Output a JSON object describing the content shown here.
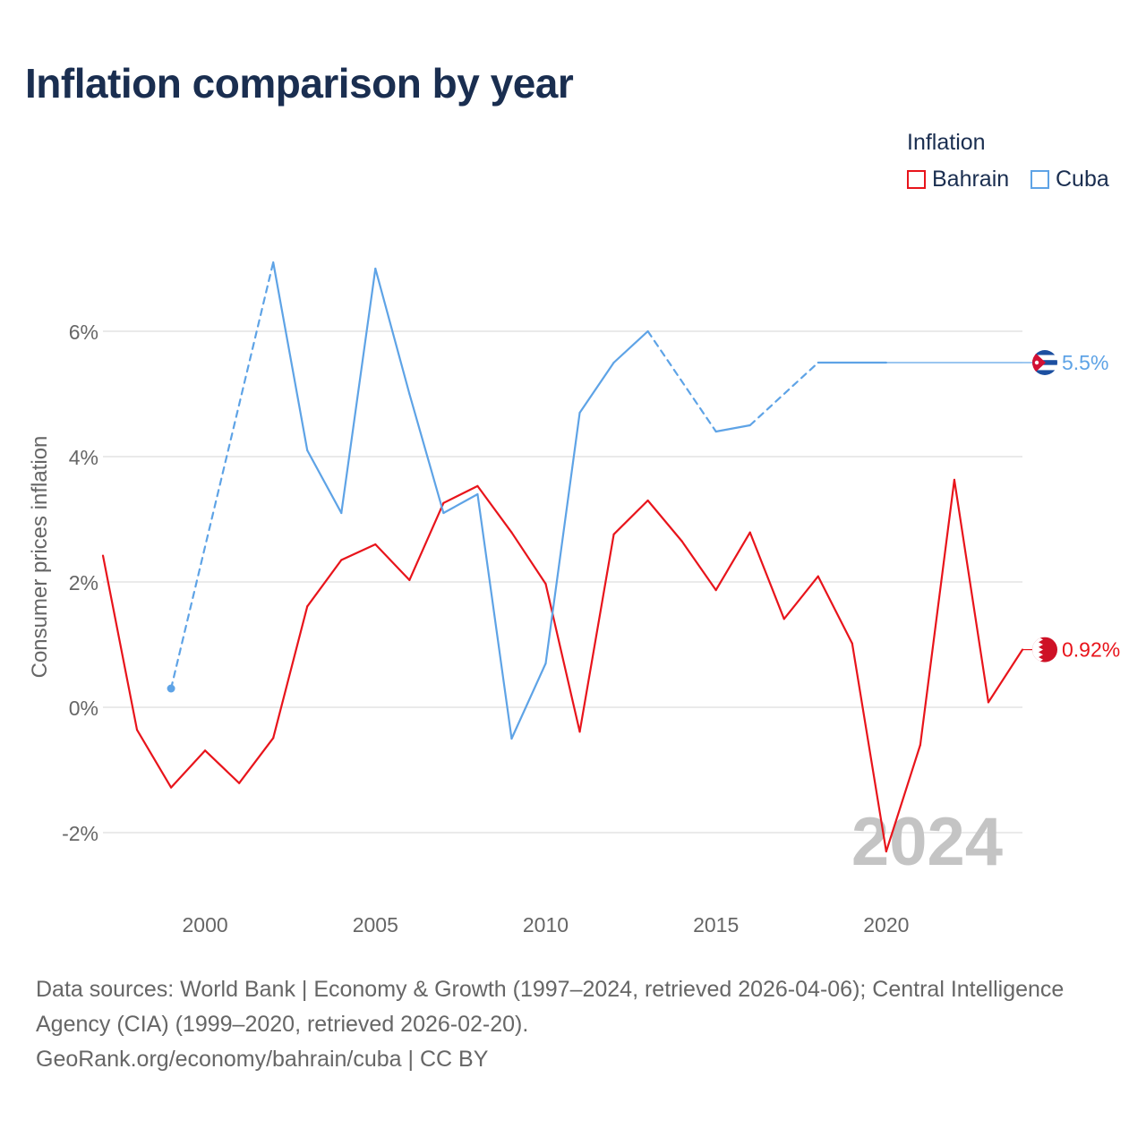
{
  "title": "Inflation comparison by year",
  "legend": {
    "title": "Inflation",
    "items": [
      {
        "label": "Bahrain",
        "color": "#e8141b"
      },
      {
        "label": "Cuba",
        "color": "#5ea3e6"
      }
    ]
  },
  "year_watermark": "2024",
  "end_labels": {
    "bahrain": "0.92%",
    "cuba": "5.5%"
  },
  "footer": {
    "sources": "Data sources: World Bank | Economy & Growth (1997–2024, retrieved 2026-04-06); Central Intelligence Agency (CIA) (1999–2020, retrieved 2026-02-20).",
    "site": "GeoRank.org/economy/bahrain/cuba | CC BY"
  },
  "chart_data": {
    "type": "line",
    "title": "Inflation comparison by year",
    "xlabel": "",
    "ylabel": "Consumer prices inflation",
    "xlim": [
      1997,
      2024
    ],
    "ylim": [
      -3.2,
      7.5
    ],
    "x_ticks": [
      2000,
      2005,
      2010,
      2015,
      2020
    ],
    "x_tick_labels": [
      "2000",
      "2005",
      "2010",
      "2015",
      "2020"
    ],
    "y_ticks": [
      -2,
      0,
      2,
      4,
      6
    ],
    "y_tick_labels": [
      "-2%",
      "0%",
      "2%",
      "4%",
      "6%"
    ],
    "grid": true,
    "legend_position": "top-right",
    "series": [
      {
        "name": "Bahrain",
        "color": "#e8141b",
        "x": [
          1997,
          1998,
          1999,
          2000,
          2001,
          2002,
          2003,
          2004,
          2005,
          2006,
          2007,
          2008,
          2009,
          2010,
          2011,
          2012,
          2013,
          2014,
          2015,
          2016,
          2017,
          2018,
          2019,
          2020,
          2021,
          2022,
          2023,
          2024
        ],
        "values": [
          2.42,
          -0.36,
          -1.28,
          -0.69,
          -1.21,
          -0.49,
          1.61,
          2.35,
          2.6,
          2.03,
          3.26,
          3.53,
          2.79,
          1.97,
          -0.39,
          2.76,
          3.3,
          2.65,
          1.87,
          2.79,
          1.41,
          2.09,
          1.02,
          -2.3,
          -0.6,
          3.63,
          0.08,
          0.92
        ],
        "dashed_segments": []
      },
      {
        "name": "Cuba",
        "color": "#5ea3e6",
        "x": [
          1999,
          2002,
          2003,
          2004,
          2005,
          2006,
          2007,
          2008,
          2009,
          2010,
          2011,
          2012,
          2013,
          2015,
          2016,
          2018,
          2020
        ],
        "values": [
          0.3,
          7.1,
          4.1,
          3.1,
          7.0,
          5.0,
          3.1,
          3.4,
          -0.5,
          0.7,
          4.7,
          5.5,
          6.0,
          4.4,
          4.5,
          5.5,
          5.5
        ],
        "dashed_segments": [
          [
            1999,
            2002
          ],
          [
            2013,
            2015
          ],
          [
            2016,
            2018
          ]
        ],
        "carried_forward_to": 2024
      }
    ]
  }
}
